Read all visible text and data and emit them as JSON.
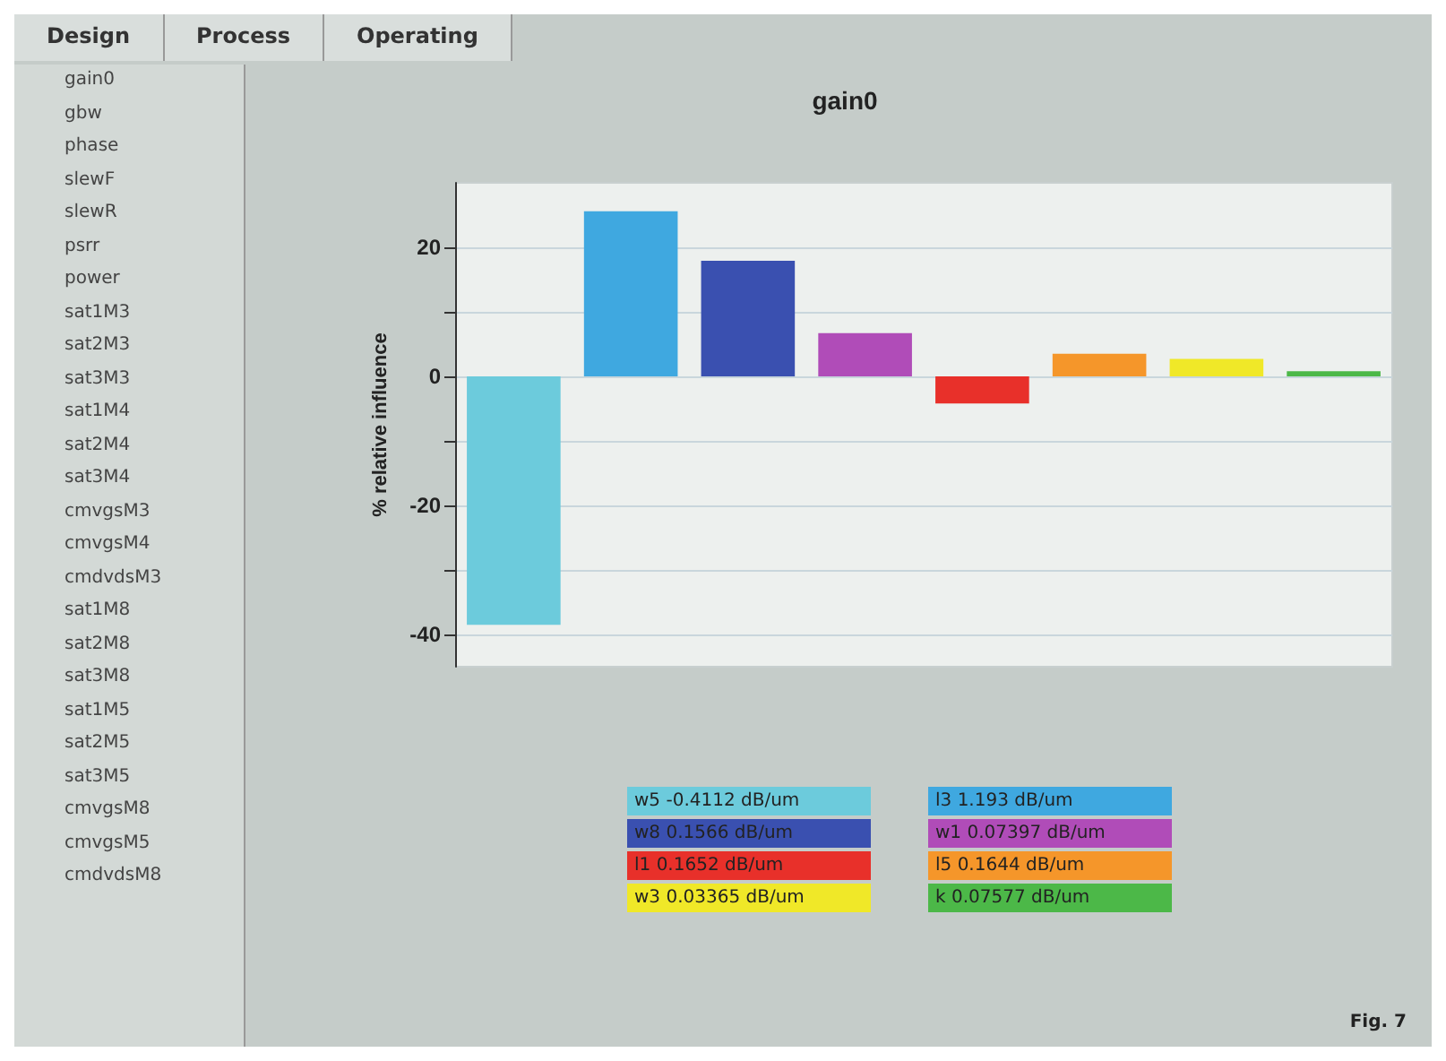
{
  "chart_data": {
    "type": "bar",
    "title": "gain0",
    "ylabel": "% relative influence",
    "categories": [
      null,
      null,
      null,
      null,
      null,
      null,
      null,
      null
    ],
    "series": [
      {
        "name": "w5 -0.4112 dB/um",
        "color": "#6ccbdc",
        "values": [
          -38.5,
          null,
          null,
          null,
          null,
          null,
          null,
          null
        ]
      },
      {
        "name": "w8 0.1566 dB/um",
        "color": "#3a50b0",
        "values": [
          null,
          null,
          17.9,
          null,
          null,
          null,
          null,
          null
        ]
      },
      {
        "name": "l1 0.1652 dB/um",
        "color": "#e8302a",
        "values": [
          null,
          null,
          null,
          null,
          -4.2,
          null,
          null,
          null
        ]
      },
      {
        "name": "w3 0.03365 dB/um",
        "color": "#f0e828",
        "values": [
          null,
          null,
          null,
          null,
          null,
          null,
          2.7,
          null
        ]
      },
      {
        "name": "l3 1.193 dB/um",
        "color": "#3fa8e0",
        "values": [
          null,
          25.6,
          null,
          null,
          null,
          null,
          null,
          null
        ]
      },
      {
        "name": "w1 0.07397 dB/um",
        "color": "#b04cb8",
        "values": [
          null,
          null,
          null,
          6.7,
          null,
          null,
          null,
          null
        ]
      },
      {
        "name": "l5 0.1644 dB/um",
        "color": "#f5962a",
        "values": [
          null,
          null,
          null,
          null,
          null,
          3.5,
          null,
          null
        ]
      },
      {
        "name": "k 0.07577 dB/um",
        "color": "#4cb848",
        "values": [
          null,
          null,
          null,
          null,
          null,
          null,
          null,
          0.8
        ]
      }
    ],
    "ylim": [
      -45,
      30
    ],
    "yticks": [
      -40,
      {
        "value": -30,
        "label": null
      },
      -20,
      {
        "value": -10,
        "label": null
      },
      0,
      {
        "value": 10,
        "label": null
      },
      20
    ],
    "grid": "y",
    "legend": "bottom",
    "tick_labels": "y",
    "annotations": [
      "Design",
      "Process",
      "Operating",
      "gain0",
      "gbw",
      "phase",
      "slewF",
      "slewR",
      "psrr",
      "power",
      "sat1M3",
      "sat2M3",
      "sat3M3",
      "sat1M4",
      "sat2M4",
      "sat3M4",
      "cmvgsM3",
      "cmvgsM4",
      "cmdvdsM3",
      "sat1M8",
      "sat2M8",
      "sat3M8",
      "sat1M5",
      "sat2M5",
      "sat3M5",
      "cmvgsM8",
      "cmvgsM5",
      "cmdvdsM8",
      "Fig. 7"
    ]
  }
}
